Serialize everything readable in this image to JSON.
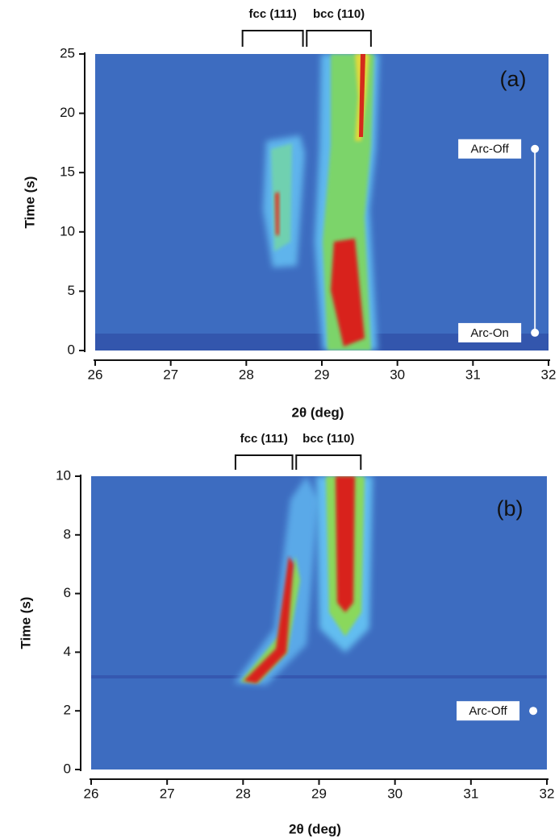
{
  "chart_data": [
    {
      "type": "heatmap",
      "panel_label": "(a)",
      "xlabel": "2θ (deg)",
      "ylabel": "Time (s)",
      "xlim": [
        26,
        32
      ],
      "xticks": [
        26,
        27,
        28,
        29,
        30,
        31,
        32
      ],
      "ylim": [
        0,
        25
      ],
      "yticks": [
        0,
        5,
        10,
        15,
        20,
        25
      ],
      "brackets": [
        {
          "label": "fcc (111)",
          "x": [
            27.95,
            28.75
          ]
        },
        {
          "label": "bcc (110)",
          "x": [
            28.8,
            29.65
          ]
        }
      ],
      "annotations": [
        {
          "text": "Arc-Off",
          "x": 31.82,
          "y": 17
        },
        {
          "text": "Arc-On",
          "x": 31.82,
          "y": 1.5
        }
      ]
    },
    {
      "type": "heatmap",
      "panel_label": "(b)",
      "xlabel": "2θ (deg)",
      "ylabel": "Time (s)",
      "xlim": [
        26,
        32
      ],
      "xticks": [
        26,
        27,
        28,
        29,
        30,
        31,
        32
      ],
      "ylim": [
        0,
        10
      ],
      "yticks": [
        0,
        2,
        4,
        6,
        8,
        10
      ],
      "brackets": [
        {
          "label": "fcc (111)",
          "x": [
            27.9,
            28.65
          ]
        },
        {
          "label": "bcc (110)",
          "x": [
            28.7,
            29.55
          ]
        }
      ],
      "annotations": [
        {
          "text": "Arc-Off",
          "x": 31.82,
          "y": 2
        }
      ]
    }
  ]
}
